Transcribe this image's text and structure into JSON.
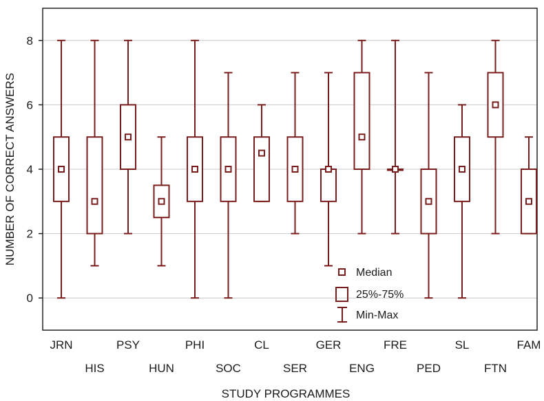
{
  "chart_data": {
    "type": "boxplot",
    "xlabel": "STUDY PROGRAMMES",
    "ylabel": "NUMBER OF CORRECT ANSWERS",
    "ylim": [
      -1,
      9
    ],
    "yticks": [
      0,
      2,
      4,
      6,
      8
    ],
    "grid": "horizontal",
    "legend_position": "bottom-center",
    "colors": {
      "box": "#7b1c1c",
      "grid": "#c8c8c8",
      "axis": "#222222"
    },
    "legend": [
      {
        "symbol": "median-marker",
        "label": "Median"
      },
      {
        "symbol": "box",
        "label": "25%-75%"
      },
      {
        "symbol": "whisker",
        "label": "Min-Max"
      }
    ],
    "series": [
      {
        "category": "JRN",
        "min": 0,
        "q1": 3,
        "median": 4,
        "q3": 5,
        "max": 8
      },
      {
        "category": "HIS",
        "min": 1,
        "q1": 2,
        "median": 3,
        "q3": 5,
        "max": 8
      },
      {
        "category": "PSY",
        "min": 2,
        "q1": 4,
        "median": 5,
        "q3": 6,
        "max": 8
      },
      {
        "category": "HUN",
        "min": 1,
        "q1": 2.5,
        "median": 3,
        "q3": 3.5,
        "max": 5
      },
      {
        "category": "PHI",
        "min": 0,
        "q1": 3,
        "median": 4,
        "q3": 5,
        "max": 8
      },
      {
        "category": "SOC",
        "min": 0,
        "q1": 3,
        "median": 4,
        "q3": 5,
        "max": 7
      },
      {
        "category": "CL",
        "min": 3,
        "q1": 3,
        "median": 4.5,
        "q3": 5,
        "max": 6
      },
      {
        "category": "SER",
        "min": 2,
        "q1": 3,
        "median": 4,
        "q3": 5,
        "max": 7
      },
      {
        "category": "GER",
        "min": 1,
        "q1": 3,
        "median": 4,
        "q3": 4,
        "max": 7
      },
      {
        "category": "ENG",
        "min": 2,
        "q1": 4,
        "median": 5,
        "q3": 7,
        "max": 8
      },
      {
        "category": "FRE",
        "min": 2,
        "q1": 4,
        "median": 4,
        "q3": 4,
        "max": 8
      },
      {
        "category": "PED",
        "min": 0,
        "q1": 2,
        "median": 3,
        "q3": 4,
        "max": 7
      },
      {
        "category": "SL",
        "min": 0,
        "q1": 3,
        "median": 4,
        "q3": 5,
        "max": 6
      },
      {
        "category": "FTN",
        "min": 2,
        "q1": 5,
        "median": 6,
        "q3": 7,
        "max": 8
      },
      {
        "category": "FAM",
        "min": 2,
        "q1": 2,
        "median": 3,
        "q3": 4,
        "max": 5
      }
    ]
  }
}
